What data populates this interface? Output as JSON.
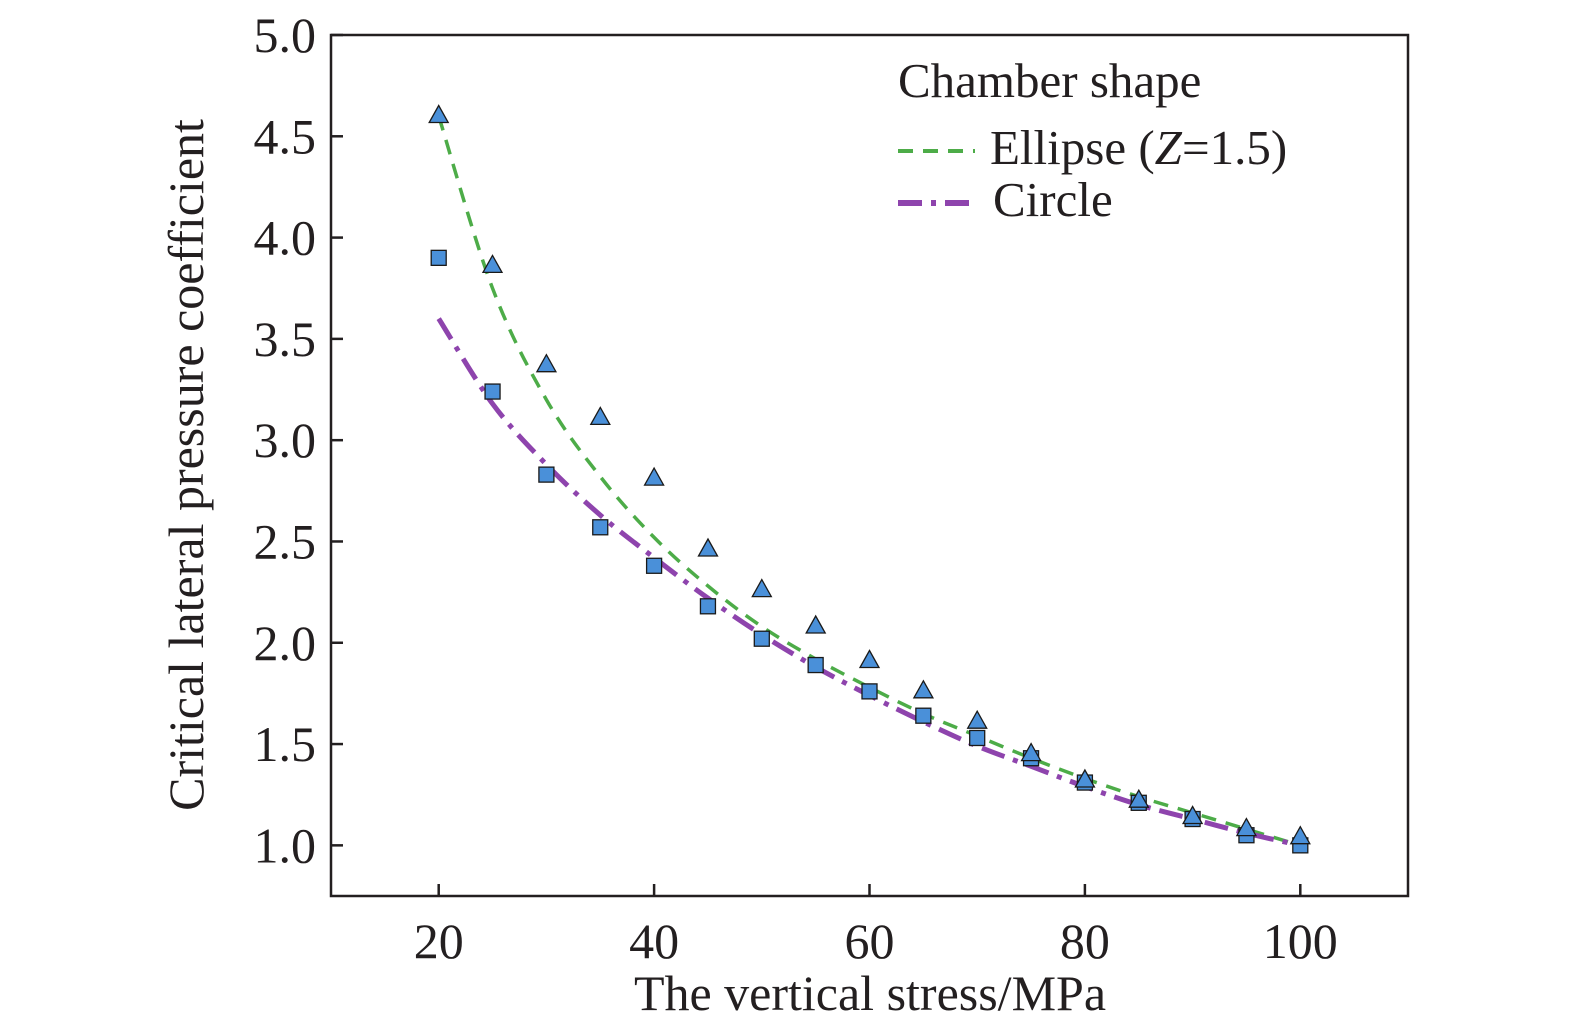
{
  "chart_data": {
    "type": "scatter",
    "xlabel": "The vertical stress/MPa",
    "ylabel": "Critical lateral pressure coefficient",
    "xlim": [
      10,
      110
    ],
    "ylim": [
      0.75,
      5.0
    ],
    "xticks": [
      20,
      40,
      60,
      80,
      100
    ],
    "xtick_labels": [
      "20",
      "40",
      "60",
      "80",
      "100"
    ],
    "yticks": [
      1.0,
      1.5,
      2.0,
      2.5,
      3.0,
      3.5,
      4.0,
      4.5,
      5.0
    ],
    "ytick_labels": [
      "1.0",
      "1.5",
      "2.0",
      "2.5",
      "3.0",
      "3.5",
      "4.0",
      "4.5",
      "5.0"
    ],
    "grid": false,
    "legend": {
      "title": "Chamber shape",
      "position": "top-right",
      "ellipse_prefix": "Ellipse (",
      "ellipse_var": "Z",
      "ellipse_suffix": "=1.5)"
    },
    "x": [
      20,
      25,
      30,
      35,
      40,
      45,
      50,
      55,
      60,
      65,
      70,
      75,
      80,
      85,
      90,
      95,
      100
    ],
    "series": [
      {
        "name": "Ellipse (Z=1.5)",
        "line_style": "dashed",
        "line_color": "#4dac48",
        "marker": "triangle",
        "marker_color": "#4a90d9",
        "points": [
          4.6,
          3.86,
          3.37,
          3.11,
          2.81,
          2.46,
          2.26,
          2.08,
          1.91,
          1.76,
          1.61,
          1.45,
          1.32,
          1.22,
          1.14,
          1.08,
          1.04
        ],
        "fit": [
          4.6,
          3.75,
          3.2,
          2.82,
          2.52,
          2.28,
          2.08,
          1.92,
          1.78,
          1.65,
          1.54,
          1.43,
          1.33,
          1.24,
          1.16,
          1.08,
          1.0
        ]
      },
      {
        "name": "Circle",
        "line_style": "dashdot",
        "line_color": "#8e44ad",
        "marker": "square",
        "marker_color": "#4a90d9",
        "points": [
          3.9,
          3.24,
          2.83,
          2.57,
          2.38,
          2.18,
          2.02,
          1.89,
          1.76,
          1.64,
          1.53,
          1.43,
          1.31,
          1.21,
          1.13,
          1.05,
          1.0
        ],
        "fit": [
          3.6,
          3.18,
          2.88,
          2.63,
          2.42,
          2.22,
          2.04,
          1.88,
          1.74,
          1.61,
          1.49,
          1.39,
          1.29,
          1.2,
          1.13,
          1.06,
          1.0
        ]
      }
    ]
  }
}
